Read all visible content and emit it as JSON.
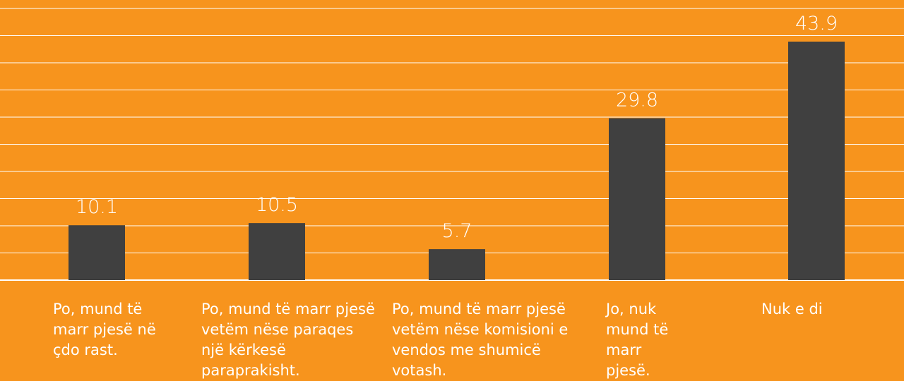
{
  "chart_data": {
    "type": "bar",
    "categories": [
      "Po, mund të marr pjesë në çdo rast.",
      "Po, mund të marr pjesë vetëm nëse paraqes një kërkesë paraprakisht.",
      "Po, mund të marr pjesë vetëm nëse komisioni e vendos me shumicë votash.",
      "Jo, nuk mund të marr pjesë.",
      "Nuk e di"
    ],
    "values": [
      10.1,
      10.5,
      5.7,
      29.8,
      43.9
    ],
    "color": "#404040",
    "ylim": [
      0,
      50
    ],
    "yticks": [
      0,
      5,
      10,
      15,
      20,
      25,
      30,
      35,
      40,
      45,
      50
    ],
    "grid": true
  }
}
